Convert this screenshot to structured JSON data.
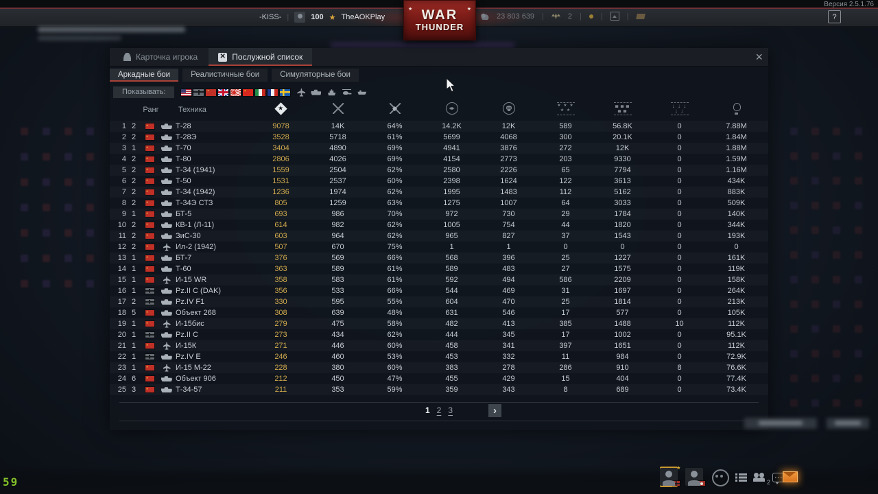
{
  "version_label": "Версия 2.5.1.76",
  "topbar": {
    "clan_tag": "-KISS-",
    "player_level": "100",
    "player_name": "TheAOKPlay",
    "silver_lions": "23 803 639",
    "golden_eagles": "2",
    "help_label": "?"
  },
  "logo": {
    "line1": "WAR",
    "line2": "THUNDER"
  },
  "window": {
    "tabs": [
      {
        "label": "Карточка игрока",
        "active": false
      },
      {
        "label": "Послужной список",
        "active": true
      }
    ],
    "close_label": "×",
    "mode_tabs": [
      {
        "label": "Аркадные бои",
        "active": true
      },
      {
        "label": "Реалистичные бои",
        "active": false
      },
      {
        "label": "Симуляторные бои",
        "active": false
      }
    ],
    "filter_label": "Показывать:",
    "nation_filters": [
      "usa",
      "germany",
      "ussr",
      "uk",
      "japan",
      "china",
      "italy",
      "france",
      "sweden"
    ],
    "type_filters": [
      "aircraft",
      "tank",
      "ship",
      "helicopter",
      "boat"
    ],
    "table": {
      "rank_header": "Ранг",
      "vehicle_header": "Техника",
      "stat_icons": [
        "diamond-star",
        "crossed-swords",
        "crossed-swords-star",
        "air-target",
        "skull",
        "air-unit-rows",
        "ground-unit-rows",
        "naval-unit-rows",
        "balloon"
      ],
      "rows": [
        {
          "idx": "1",
          "rank": "2",
          "nation": "ussr",
          "type": "tank",
          "name": "Т-28",
          "stats": [
            "9078",
            "14K",
            "64%",
            "14.2K",
            "12K",
            "589",
            "56.8K",
            "0",
            "7.88M"
          ]
        },
        {
          "idx": "2",
          "rank": "2",
          "nation": "ussr",
          "type": "tank",
          "name": "Т-28Э",
          "stats": [
            "3528",
            "5718",
            "61%",
            "5699",
            "4068",
            "300",
            "20.1K",
            "0",
            "1.84M"
          ]
        },
        {
          "idx": "3",
          "rank": "1",
          "nation": "ussr",
          "type": "tank",
          "name": "Т-70",
          "stats": [
            "3404",
            "4890",
            "69%",
            "4941",
            "3876",
            "272",
            "12K",
            "0",
            "1.88M"
          ]
        },
        {
          "idx": "4",
          "rank": "2",
          "nation": "ussr",
          "type": "tank",
          "name": "Т-80",
          "stats": [
            "2806",
            "4026",
            "69%",
            "4154",
            "2773",
            "203",
            "9330",
            "0",
            "1.59M"
          ]
        },
        {
          "idx": "5",
          "rank": "2",
          "nation": "ussr",
          "type": "tank",
          "name": "Т-34 (1941)",
          "stats": [
            "1559",
            "2504",
            "62%",
            "2580",
            "2226",
            "65",
            "7794",
            "0",
            "1.16M"
          ]
        },
        {
          "idx": "6",
          "rank": "2",
          "nation": "ussr",
          "type": "tank",
          "name": "Т-50",
          "stats": [
            "1531",
            "2537",
            "60%",
            "2398",
            "1624",
            "122",
            "3613",
            "0",
            "434K"
          ]
        },
        {
          "idx": "7",
          "rank": "2",
          "nation": "ussr",
          "type": "tank",
          "name": "Т-34 (1942)",
          "stats": [
            "1236",
            "1974",
            "62%",
            "1995",
            "1483",
            "112",
            "5162",
            "0",
            "883K"
          ]
        },
        {
          "idx": "8",
          "rank": "2",
          "nation": "ussr",
          "type": "tank",
          "name": "Т-34Э СТЗ",
          "stats": [
            "805",
            "1259",
            "63%",
            "1275",
            "1007",
            "64",
            "3033",
            "0",
            "509K"
          ]
        },
        {
          "idx": "9",
          "rank": "1",
          "nation": "ussr",
          "type": "tank",
          "name": "БТ-5",
          "stats": [
            "693",
            "986",
            "70%",
            "972",
            "730",
            "29",
            "1784",
            "0",
            "140K"
          ]
        },
        {
          "idx": "10",
          "rank": "2",
          "nation": "ussr",
          "type": "tank",
          "name": "КВ-1 (Л-11)",
          "stats": [
            "614",
            "982",
            "62%",
            "1005",
            "754",
            "44",
            "1820",
            "0",
            "344K"
          ]
        },
        {
          "idx": "11",
          "rank": "2",
          "nation": "ussr",
          "type": "tank",
          "name": "ЗиС-30",
          "stats": [
            "603",
            "964",
            "62%",
            "965",
            "827",
            "37",
            "1543",
            "0",
            "193K"
          ]
        },
        {
          "idx": "12",
          "rank": "2",
          "nation": "ussr",
          "type": "plane",
          "name": "Ил-2 (1942)",
          "stats": [
            "507",
            "670",
            "75%",
            "1",
            "1",
            "0",
            "0",
            "0",
            "0"
          ]
        },
        {
          "idx": "13",
          "rank": "1",
          "nation": "ussr",
          "type": "tank",
          "name": "БТ-7",
          "stats": [
            "376",
            "569",
            "66%",
            "568",
            "396",
            "25",
            "1227",
            "0",
            "161K"
          ]
        },
        {
          "idx": "14",
          "rank": "1",
          "nation": "ussr",
          "type": "tank",
          "name": "Т-60",
          "stats": [
            "363",
            "589",
            "61%",
            "589",
            "483",
            "27",
            "1575",
            "0",
            "119K"
          ]
        },
        {
          "idx": "15",
          "rank": "1",
          "nation": "ussr",
          "type": "plane",
          "name": "И-15 WR",
          "stats": [
            "358",
            "583",
            "61%",
            "592",
            "494",
            "586",
            "2209",
            "0",
            "158K"
          ]
        },
        {
          "idx": "16",
          "rank": "1",
          "nation": "germany",
          "type": "tank",
          "name": "Pz.II C (DAK)",
          "stats": [
            "356",
            "533",
            "66%",
            "544",
            "469",
            "31",
            "1697",
            "0",
            "264K"
          ]
        },
        {
          "idx": "17",
          "rank": "2",
          "nation": "germany",
          "type": "tank",
          "name": "Pz.IV F1",
          "stats": [
            "330",
            "595",
            "55%",
            "604",
            "470",
            "25",
            "1814",
            "0",
            "213K"
          ]
        },
        {
          "idx": "18",
          "rank": "5",
          "nation": "ussr",
          "type": "tank",
          "name": "Объект 268",
          "stats": [
            "308",
            "639",
            "48%",
            "631",
            "546",
            "17",
            "577",
            "0",
            "105K"
          ]
        },
        {
          "idx": "19",
          "rank": "1",
          "nation": "ussr",
          "type": "plane",
          "name": "И-15бис",
          "stats": [
            "279",
            "475",
            "58%",
            "482",
            "413",
            "385",
            "1488",
            "10",
            "112K"
          ]
        },
        {
          "idx": "20",
          "rank": "1",
          "nation": "germany",
          "type": "tank",
          "name": "Pz.II C",
          "stats": [
            "273",
            "434",
            "62%",
            "444",
            "345",
            "17",
            "1002",
            "0",
            "95.1K"
          ]
        },
        {
          "idx": "21",
          "rank": "1",
          "nation": "ussr",
          "type": "plane",
          "name": "И-15К",
          "stats": [
            "271",
            "446",
            "60%",
            "458",
            "341",
            "397",
            "1651",
            "0",
            "112K"
          ]
        },
        {
          "idx": "22",
          "rank": "1",
          "nation": "germany",
          "type": "tank",
          "name": "Pz.IV E",
          "stats": [
            "246",
            "460",
            "53%",
            "453",
            "332",
            "11",
            "984",
            "0",
            "72.9K"
          ]
        },
        {
          "idx": "23",
          "rank": "1",
          "nation": "ussr",
          "type": "plane",
          "name": "И-15 М-22",
          "stats": [
            "228",
            "380",
            "60%",
            "383",
            "278",
            "286",
            "910",
            "8",
            "76.6K"
          ]
        },
        {
          "idx": "24",
          "rank": "6",
          "nation": "ussr",
          "type": "tank",
          "name": "Объект 906",
          "stats": [
            "212",
            "450",
            "47%",
            "455",
            "429",
            "15",
            "404",
            "0",
            "77.4K"
          ]
        },
        {
          "idx": "25",
          "rank": "3",
          "nation": "ussr",
          "type": "tank",
          "name": "Т-34-57",
          "stats": [
            "211",
            "353",
            "59%",
            "359",
            "343",
            "8",
            "689",
            "0",
            "73.4K"
          ]
        }
      ]
    },
    "pagination": {
      "pages": [
        "1",
        "2",
        "3"
      ],
      "current": "1",
      "next_label": "›"
    }
  },
  "social": {
    "squad_count": "2",
    "chat_dots": "···"
  },
  "fps": "59"
}
